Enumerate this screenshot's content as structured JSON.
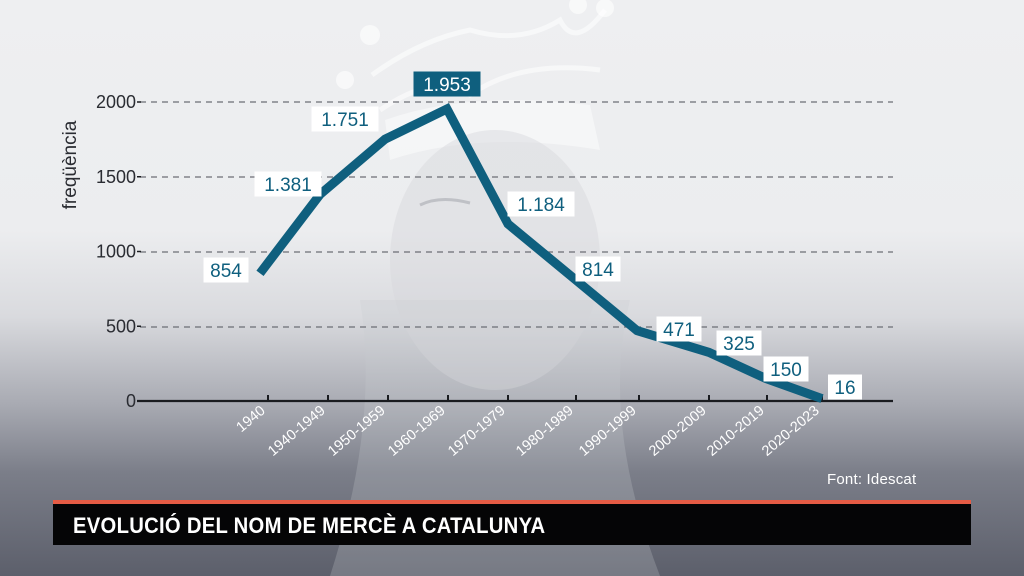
{
  "chart_data": {
    "type": "line",
    "title": "EVOLUCIÓ DEL NOM DE MERCÈ A CATALUNYA",
    "xlabel": "",
    "ylabel": "freqüència",
    "categories": [
      "1940",
      "1940-1949",
      "1950-1959",
      "1960-1969",
      "1970-1979",
      "1980-1989",
      "1990-1999",
      "2000-2009",
      "2010-2019",
      "2020-2023"
    ],
    "values": [
      854,
      1381,
      1751,
      1953,
      1184,
      814,
      471,
      325,
      150,
      16
    ],
    "data_labels": [
      "854",
      "1.381",
      "1.751",
      "1.953",
      "1.184",
      "814",
      "471",
      "325",
      "150",
      "16"
    ],
    "highlighted_label_index": 3,
    "yticks": [
      "0",
      "500",
      "1000",
      "1500",
      "2000"
    ],
    "ylim": [
      0,
      2000
    ],
    "grid": "horizontal dashed",
    "legend": "none",
    "line_color": "#0f5f7e",
    "source": "Font: Idescat"
  },
  "chart": {
    "ylabel": "freqüència",
    "yticks": [
      "0",
      "500",
      "1000",
      "1500",
      "2000"
    ],
    "source": "Font: Idescat"
  },
  "title_bar": {
    "text": "EVOLUCIÓ DEL NOM DE MERCÈ A CATALUNYA",
    "accent_color": "#e55c45"
  }
}
